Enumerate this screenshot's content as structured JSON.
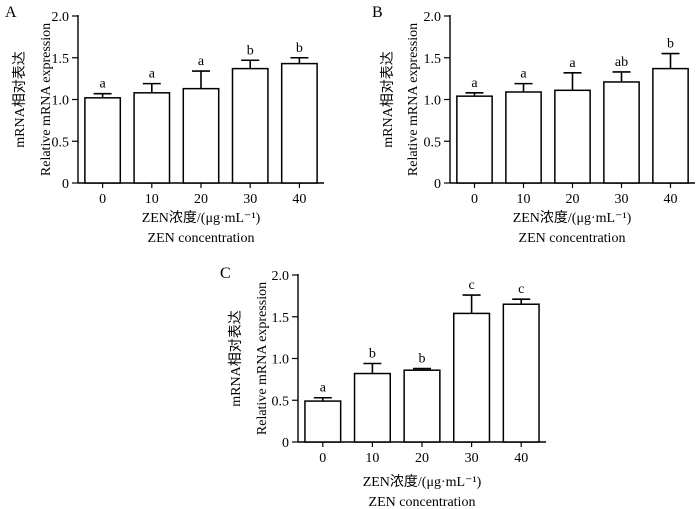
{
  "chart_data": [
    {
      "type": "bar",
      "panel_label": "A",
      "categories": [
        "0",
        "10",
        "20",
        "30",
        "40"
      ],
      "values": [
        1.02,
        1.08,
        1.13,
        1.37,
        1.43
      ],
      "errors": [
        0.05,
        0.11,
        0.21,
        0.1,
        0.07
      ],
      "significance": [
        "a",
        "a",
        "a",
        "b",
        "b"
      ],
      "ylim": [
        0,
        2.0
      ],
      "yticks": [
        "0",
        "0.5",
        "1.0",
        "1.5",
        "2.0"
      ],
      "ylabel_cn": "mRNA相对表达",
      "ylabel_en": "Relative mRNA expression",
      "xlabel_cn": "ZEN浓度/(μg·mL⁻¹)",
      "xlabel_en": "ZEN concentration"
    },
    {
      "type": "bar",
      "panel_label": "B",
      "categories": [
        "0",
        "10",
        "20",
        "30",
        "40"
      ],
      "values": [
        1.04,
        1.09,
        1.11,
        1.21,
        1.37
      ],
      "errors": [
        0.04,
        0.1,
        0.21,
        0.12,
        0.18
      ],
      "significance": [
        "a",
        "a",
        "a",
        "ab",
        "b"
      ],
      "ylim": [
        0,
        2.0
      ],
      "yticks": [
        "0",
        "0.5",
        "1.0",
        "1.5",
        "2.0"
      ],
      "ylabel_cn": "mRNA相对表达",
      "ylabel_en": "Relative mRNA expression",
      "xlabel_cn": "ZEN浓度/(μg·mL⁻¹)",
      "xlabel_en": "ZEN concentration"
    },
    {
      "type": "bar",
      "panel_label": "C",
      "categories": [
        "0",
        "10",
        "20",
        "30",
        "40"
      ],
      "values": [
        0.49,
        0.82,
        0.86,
        1.54,
        1.65
      ],
      "errors": [
        0.04,
        0.12,
        0.02,
        0.22,
        0.06
      ],
      "significance": [
        "a",
        "b",
        "b",
        "c",
        "c"
      ],
      "ylim": [
        0,
        2.0
      ],
      "yticks": [
        "0",
        "0.5",
        "1.0",
        "1.5",
        "2.0"
      ],
      "ylabel_cn": "mRNA相对表达",
      "ylabel_en": "Relative mRNA expression",
      "xlabel_cn": "ZEN浓度/(μg·mL⁻¹)",
      "xlabel_en": "ZEN concentration"
    }
  ]
}
